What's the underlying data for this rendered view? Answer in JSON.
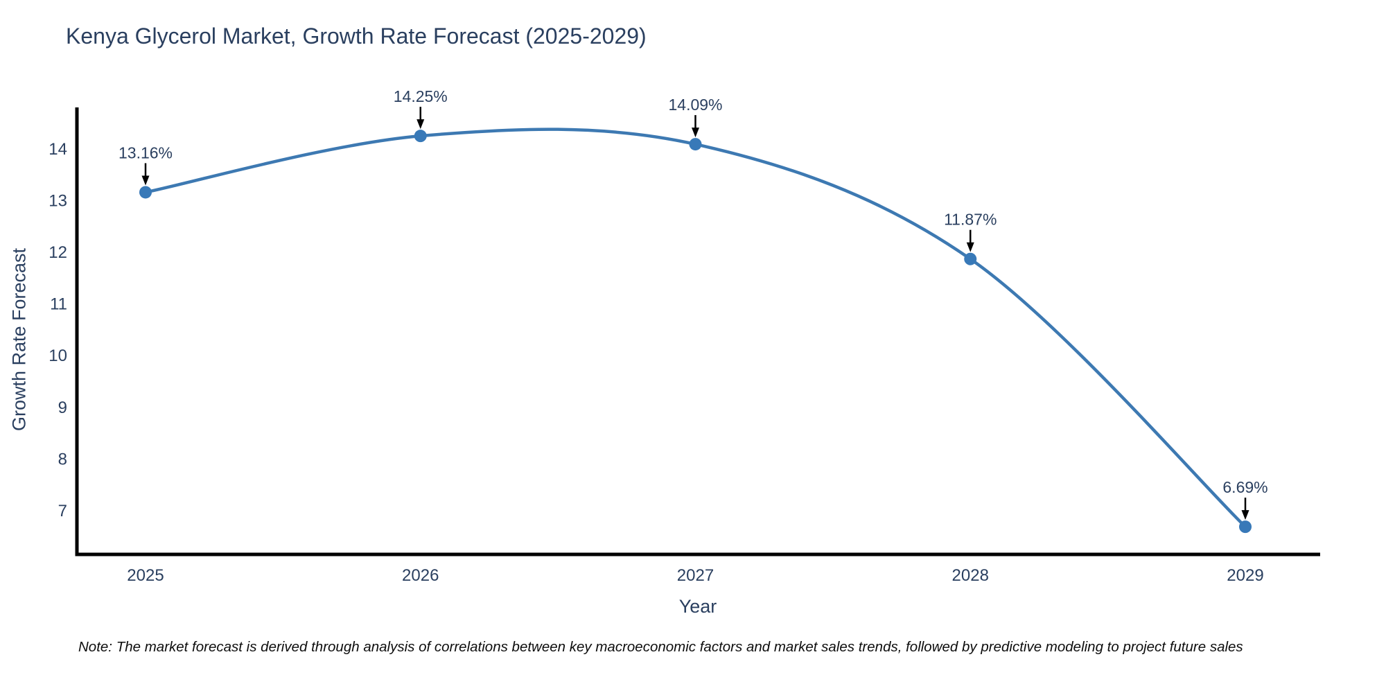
{
  "chart_data": {
    "type": "line",
    "title": "Kenya Glycerol Market, Growth Rate Forecast (2025-2029)",
    "xlabel": "Year",
    "ylabel": "Growth Rate Forecast",
    "x": [
      2025,
      2026,
      2027,
      2028,
      2029
    ],
    "series": [
      {
        "name": "Growth Rate Forecast",
        "values": [
          13.16,
          14.25,
          14.09,
          11.87,
          6.69
        ]
      }
    ],
    "point_labels": [
      "13.16%",
      "14.25%",
      "14.09%",
      "11.87%",
      "6.69%"
    ],
    "yticks": [
      7,
      8,
      9,
      10,
      11,
      12,
      13,
      14
    ],
    "ylim": [
      6.15,
      14.8
    ],
    "xlim": [
      2024.75,
      2029.27
    ],
    "line_shape": "spline",
    "grid": false,
    "legend_position": "none",
    "colors": {
      "line": "#3d79b2",
      "marker": "#3879b8",
      "axis": "#000000",
      "tick_text": "#2a3f5f",
      "annotation_text": "#2a3f5f",
      "annotation_arrow": "#000000",
      "note_text": "#0d0d0d"
    }
  },
  "note": "Note: The market forecast is derived through analysis of correlations between key macroeconomic factors and market sales trends, followed by predictive modeling to project future sales"
}
